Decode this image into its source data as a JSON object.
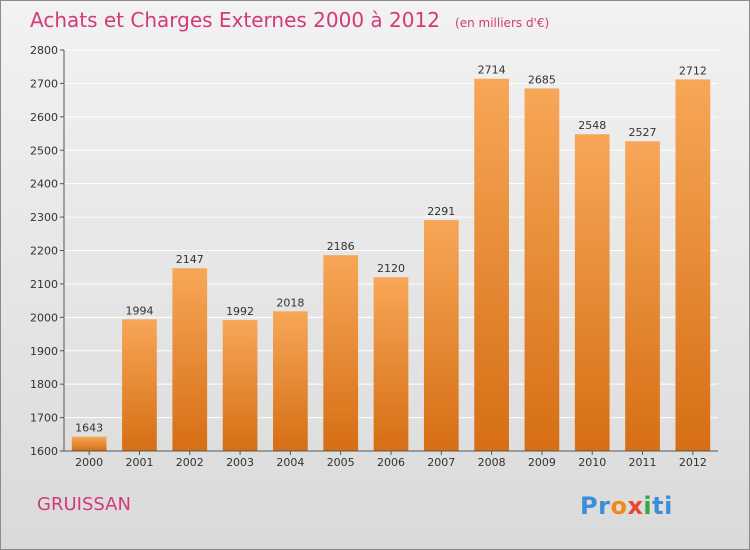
{
  "header": {
    "title": "Achats et Charges Externes 2000 à 2012",
    "unit": "(en milliers d'€)"
  },
  "footer": {
    "city": "GRUISSAN",
    "logo_parts": [
      "Pr",
      "o",
      "x",
      "i",
      "ti"
    ]
  },
  "colors": {
    "title": "#d23a78",
    "bar_top": "#f7a757",
    "bar_bottom": "#d66e14",
    "axis": "#555555",
    "grid": "#ffffff",
    "logo": [
      "#3a8fd6",
      "#f08a1c",
      "#e8482d",
      "#3aa542",
      "#3a8fd6"
    ]
  },
  "chart_data": {
    "type": "bar",
    "title": "Achats et Charges Externes 2000 à 2012",
    "xlabel": "",
    "ylabel": "",
    "categories": [
      "2000",
      "2001",
      "2002",
      "2003",
      "2004",
      "2005",
      "2006",
      "2007",
      "2008",
      "2009",
      "2010",
      "2011",
      "2012"
    ],
    "values": [
      1643,
      1994,
      2147,
      1992,
      2018,
      2186,
      2120,
      2291,
      2714,
      2685,
      2548,
      2527,
      2712
    ],
    "ylim": [
      1600,
      2800
    ],
    "yticks": [
      1600,
      1700,
      1800,
      1900,
      2000,
      2100,
      2200,
      2300,
      2400,
      2500,
      2600,
      2700,
      2800
    ],
    "grid": true,
    "legend": "none"
  }
}
